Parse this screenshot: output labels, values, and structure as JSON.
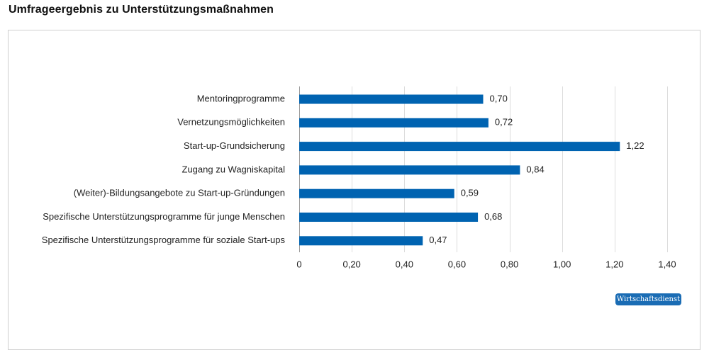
{
  "page": {
    "title": "Umfrageergebnis zu Unterstützungsmaßnahmen",
    "source": "Wirtschaftsdienst"
  },
  "colors": {
    "bar": "#0063b1",
    "grid": "#dcdcdc",
    "badge": "#1a6cb4"
  },
  "chart_data": {
    "type": "bar",
    "orientation": "horizontal",
    "title": "Umfrageergebnis zu Unterstützungsmaßnahmen",
    "xlabel": "",
    "ylabel": "",
    "categories": [
      "Mentoringprogramme",
      "Vernetzungsmöglichkeiten",
      "Start-up-Grundsicherung",
      "Zugang zu Wagniskapital",
      "(Weiter)-Bildungsangebote zu Start-up-Gründungen",
      "Spezifische Unterstützungsprogramme für junge Menschen",
      "Spezifische Unterstützungsprogramme für soziale Start-ups"
    ],
    "values": [
      0.7,
      0.72,
      1.22,
      0.84,
      0.59,
      0.68,
      0.47
    ],
    "value_labels": [
      "0,70",
      "0,72",
      "1,22",
      "0,84",
      "0,59",
      "0,68",
      "0,47"
    ],
    "xlim": [
      0,
      1.4
    ],
    "x_ticks": [
      0,
      0.2,
      0.4,
      0.6,
      0.8,
      1.0,
      1.2,
      1.4
    ],
    "x_tick_labels": [
      "0",
      "0,20",
      "0,40",
      "0,60",
      "0,80",
      "1,00",
      "1,20",
      "1,40"
    ],
    "grid": true,
    "legend": "none"
  }
}
